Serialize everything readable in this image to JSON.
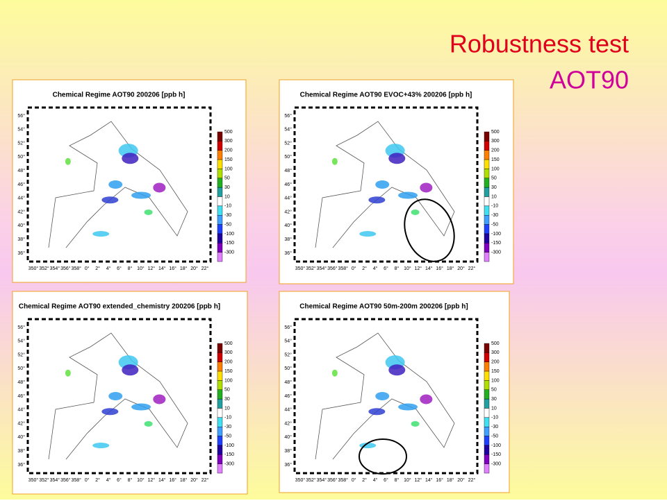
{
  "header": {
    "title": "Robustness test",
    "subtitle": "AOT90"
  },
  "panels": [
    {
      "title": "Chemical Regime AOT90 200206 [ppb h]"
    },
    {
      "title": "Chemical Regime AOT90 EVOC+43% 200206 [ppb h]"
    },
    {
      "title": "Chemical Regime AOT90 extended_chemistry 200206 [ppb h]"
    },
    {
      "title": "Chemical Regime AOT90 50m-200m 200206 [ppb h]"
    }
  ],
  "lat_labels": [
    "56°",
    "54°",
    "52°",
    "50°",
    "48°",
    "46°",
    "44°",
    "42°",
    "40°",
    "38°",
    "36°"
  ],
  "lon_labels": [
    "350°",
    "352°",
    "354°",
    "356°",
    "358°",
    "0°",
    "2°",
    "4°",
    "6°",
    "8°",
    "10°",
    "12°",
    "14°",
    "16°",
    "18°",
    "20°",
    "22°"
  ],
  "colorbar_labels": [
    "500",
    "300",
    "200",
    "150",
    "100",
    "50",
    "30",
    "10",
    "-10",
    "-30",
    "-50",
    "-100",
    "-150",
    "-300"
  ]
}
